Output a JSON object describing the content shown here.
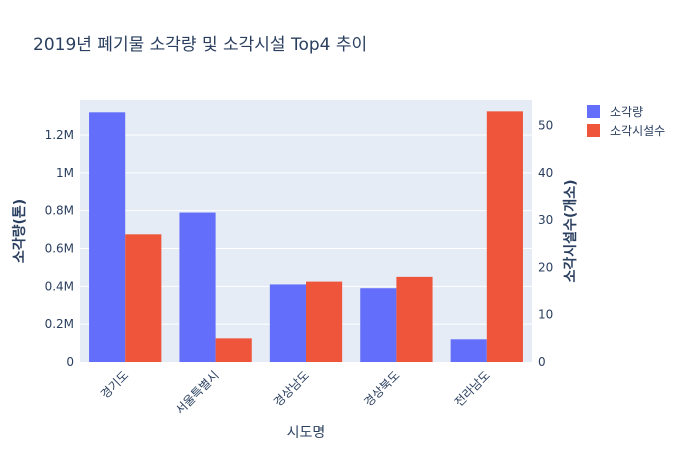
{
  "chart_data": {
    "type": "bar",
    "title": "2019년 폐기물 소각량 및 소각시설 Top4 추이",
    "xlabel": "시도명",
    "ylabel": "소각량(톤)",
    "y2label": "소각시설수(개소)",
    "categories": [
      "경기도",
      "서울특별시",
      "경상남도",
      "경상북도",
      "전라남도"
    ],
    "series": [
      {
        "name": "소각량",
        "axis": "left",
        "color": "#636efa",
        "values": [
          1320000,
          790000,
          410000,
          390000,
          120000
        ]
      },
      {
        "name": "소각시설수",
        "axis": "right",
        "color": "#ef553b",
        "values": [
          27,
          5,
          17,
          18,
          53
        ]
      }
    ],
    "y_left": {
      "range": [
        0,
        1385000
      ],
      "ticks": [
        0,
        200000,
        400000,
        600000,
        800000,
        1000000,
        1200000
      ],
      "tick_labels": [
        "0",
        "0.2M",
        "0.4M",
        "0.6M",
        "0.8M",
        "1M",
        "1.2M"
      ]
    },
    "y_right": {
      "range": [
        0,
        55.4
      ],
      "ticks": [
        0,
        10,
        20,
        30,
        40,
        50
      ],
      "tick_labels": [
        "0",
        "10",
        "20",
        "30",
        "40",
        "50"
      ]
    },
    "grid": true,
    "legend_position": "top-right",
    "plot_background": "#e5ecf6"
  }
}
